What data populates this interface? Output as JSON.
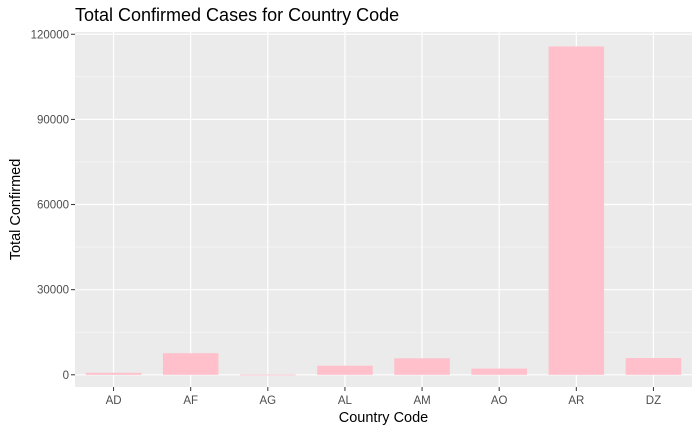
{
  "chart_data": {
    "type": "bar",
    "title": "Total Confirmed Cases for Country Code",
    "xlabel": "Country Code",
    "ylabel": "Total Confirmed",
    "categories": [
      "AD",
      "AF",
      "AG",
      "AL",
      "AM",
      "AO",
      "AR",
      "DZ"
    ],
    "values": [
      700,
      7600,
      100,
      3200,
      5800,
      2200,
      115700,
      5900
    ],
    "ylim": [
      -4300,
      120800
    ],
    "yticks": [
      0,
      30000,
      60000,
      90000,
      120000
    ],
    "ytick_labels": [
      "0",
      "30000",
      "60000",
      "90000",
      "120000"
    ],
    "grid": true,
    "colors": {
      "bar": "#ffc0cb",
      "panel_background": "#ebebeb",
      "grid_major": "#ffffff",
      "tick_text": "#4d4d4d"
    }
  }
}
